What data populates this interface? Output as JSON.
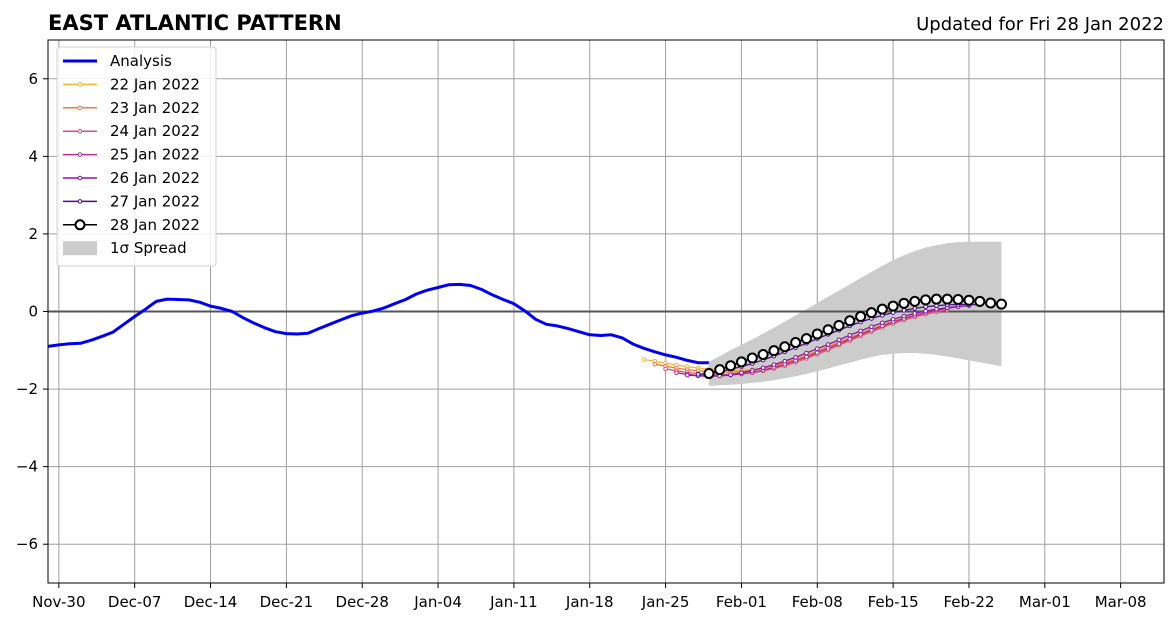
{
  "chart_data": {
    "type": "line",
    "title": "EAST ATLANTIC PATTERN",
    "subtitle": "Updated for Fri 28 Jan 2022",
    "xlabel": "",
    "ylabel": "",
    "xlim": [
      "2021-11-29",
      "2022-03-12"
    ],
    "ylim": [
      -7,
      7
    ],
    "x_tick_labels": [
      "Nov-30",
      "Dec-07",
      "Dec-14",
      "Dec-21",
      "Dec-28",
      "Jan-04",
      "Jan-11",
      "Jan-18",
      "Jan-25",
      "Feb-01",
      "Feb-08",
      "Feb-15",
      "Feb-22",
      "Mar-01",
      "Mar-08"
    ],
    "x_tick_dates": [
      "2021-11-30",
      "2021-12-07",
      "2021-12-14",
      "2021-12-21",
      "2021-12-28",
      "2022-01-04",
      "2022-01-11",
      "2022-01-18",
      "2022-01-25",
      "2022-02-01",
      "2022-02-08",
      "2022-02-15",
      "2022-02-22",
      "2022-03-01",
      "2022-03-08"
    ],
    "y_ticks": [
      -6,
      -4,
      -2,
      0,
      2,
      4,
      6
    ],
    "y_tick_labels": [
      "−6",
      "−4",
      "−2",
      "0",
      "2",
      "4",
      "6"
    ],
    "grid": true,
    "legend_position": "top-left",
    "analysis": {
      "name": "Analysis",
      "color": "#0000ee",
      "start_date": "2021-11-29",
      "values": [
        -0.9,
        -0.86,
        -0.83,
        -0.82,
        -0.74,
        -0.64,
        -0.53,
        -0.33,
        -0.13,
        0.06,
        0.26,
        0.32,
        0.31,
        0.3,
        0.24,
        0.14,
        0.08,
        0.0,
        -0.16,
        -0.3,
        -0.42,
        -0.52,
        -0.57,
        -0.58,
        -0.56,
        -0.44,
        -0.33,
        -0.22,
        -0.11,
        -0.04,
        0.01,
        0.09,
        0.2,
        0.31,
        0.45,
        0.55,
        0.62,
        0.69,
        0.7,
        0.67,
        0.57,
        0.43,
        0.31,
        0.2,
        0.02,
        -0.2,
        -0.33,
        -0.37,
        -0.44,
        -0.52,
        -0.6,
        -0.62,
        -0.6,
        -0.68,
        -0.84,
        -0.95,
        -1.04,
        -1.12,
        -1.18,
        -1.26,
        -1.32,
        -1.32
      ]
    },
    "forecasts": [
      {
        "name": "22 Jan 2022",
        "color": "#f5b335",
        "start_date": "2022-01-23",
        "values": [
          -1.24,
          -1.28,
          -1.33,
          -1.38,
          -1.42,
          -1.46,
          -1.48,
          -1.5,
          -1.52,
          -1.51,
          -1.5,
          -1.46,
          -1.41,
          -1.34,
          -1.26,
          -1.16,
          -1.05,
          -0.94,
          -0.83,
          -0.72,
          -0.6,
          -0.49,
          -0.38,
          -0.28,
          -0.19,
          -0.11,
          -0.05
        ]
      },
      {
        "name": "23 Jan 2022",
        "color": "#ee7a3e",
        "start_date": "2022-01-24",
        "values": [
          -1.36,
          -1.41,
          -1.46,
          -1.5,
          -1.53,
          -1.55,
          -1.56,
          -1.56,
          -1.55,
          -1.51,
          -1.46,
          -1.4,
          -1.32,
          -1.23,
          -1.13,
          -1.02,
          -0.91,
          -0.79,
          -0.68,
          -0.56,
          -0.45,
          -0.35,
          -0.25,
          -0.17,
          -0.1,
          -0.04,
          0.0
        ]
      },
      {
        "name": "24 Jan 2022",
        "color": "#d9536c",
        "start_date": "2022-01-25",
        "values": [
          -1.48,
          -1.53,
          -1.57,
          -1.6,
          -1.62,
          -1.63,
          -1.63,
          -1.61,
          -1.58,
          -1.53,
          -1.47,
          -1.4,
          -1.31,
          -1.21,
          -1.1,
          -0.99,
          -0.87,
          -0.75,
          -0.63,
          -0.52,
          -0.41,
          -0.31,
          -0.22,
          -0.14,
          -0.07,
          -0.01,
          0.04
        ]
      },
      {
        "name": "25 Jan 2022",
        "color": "#b22f8c",
        "start_date": "2022-01-26",
        "values": [
          -1.58,
          -1.62,
          -1.65,
          -1.66,
          -1.66,
          -1.64,
          -1.61,
          -1.57,
          -1.51,
          -1.44,
          -1.36,
          -1.27,
          -1.17,
          -1.06,
          -0.95,
          -0.83,
          -0.71,
          -0.59,
          -0.48,
          -0.37,
          -0.27,
          -0.18,
          -0.1,
          -0.03,
          0.03,
          0.08,
          0.12
        ]
      },
      {
        "name": "26 Jan 2022",
        "color": "#8b14a8",
        "start_date": "2022-01-27",
        "values": [
          -1.64,
          -1.66,
          -1.67,
          -1.66,
          -1.63,
          -1.58,
          -1.52,
          -1.45,
          -1.37,
          -1.28,
          -1.18,
          -1.07,
          -0.96,
          -0.85,
          -0.73,
          -0.61,
          -0.5,
          -0.39,
          -0.29,
          -0.2,
          -0.12,
          -0.05,
          0.01,
          0.06,
          0.1,
          0.13,
          0.15
        ]
      },
      {
        "name": "27 Jan 2022",
        "color": "#4a0c8c",
        "start_date": "2022-01-28",
        "values": [
          -1.62,
          -1.6,
          -1.55,
          -1.49,
          -1.42,
          -1.34,
          -1.25,
          -1.15,
          -1.04,
          -0.93,
          -0.82,
          -0.7,
          -0.59,
          -0.48,
          -0.37,
          -0.27,
          -0.18,
          -0.1,
          -0.03,
          0.03,
          0.08,
          0.12,
          0.15,
          0.17,
          0.18,
          0.18,
          0.17
        ]
      }
    ],
    "current_forecast": {
      "name": "28 Jan 2022",
      "color": "#000000",
      "start_date": "2022-01-29",
      "values": [
        -1.6,
        -1.5,
        -1.4,
        -1.3,
        -1.2,
        -1.11,
        -1.01,
        -0.91,
        -0.8,
        -0.7,
        -0.58,
        -0.47,
        -0.36,
        -0.24,
        -0.13,
        -0.03,
        0.06,
        0.14,
        0.21,
        0.26,
        0.3,
        0.32,
        0.32,
        0.31,
        0.29,
        0.26,
        0.22,
        0.19
      ]
    },
    "spread": {
      "name": "1σ Spread",
      "color": "#cccccc",
      "start_date": "2022-01-29",
      "upper": [
        -1.3,
        -1.15,
        -1.0,
        -0.86,
        -0.72,
        -0.57,
        -0.42,
        -0.26,
        -0.1,
        0.06,
        0.22,
        0.38,
        0.54,
        0.7,
        0.86,
        1.02,
        1.18,
        1.32,
        1.45,
        1.56,
        1.65,
        1.71,
        1.76,
        1.79,
        1.8,
        1.8,
        1.8,
        1.8
      ],
      "lower": [
        -1.92,
        -1.9,
        -1.89,
        -1.87,
        -1.84,
        -1.81,
        -1.77,
        -1.72,
        -1.67,
        -1.61,
        -1.54,
        -1.47,
        -1.39,
        -1.32,
        -1.24,
        -1.17,
        -1.12,
        -1.09,
        -1.07,
        -1.07,
        -1.09,
        -1.12,
        -1.16,
        -1.21,
        -1.26,
        -1.31,
        -1.36,
        -1.41
      ]
    }
  },
  "legend_labels": [
    "Analysis",
    "22 Jan 2022",
    "23 Jan 2022",
    "24 Jan 2022",
    "25 Jan 2022",
    "26 Jan 2022",
    "27 Jan 2022",
    "28 Jan 2022",
    "1σ Spread"
  ]
}
